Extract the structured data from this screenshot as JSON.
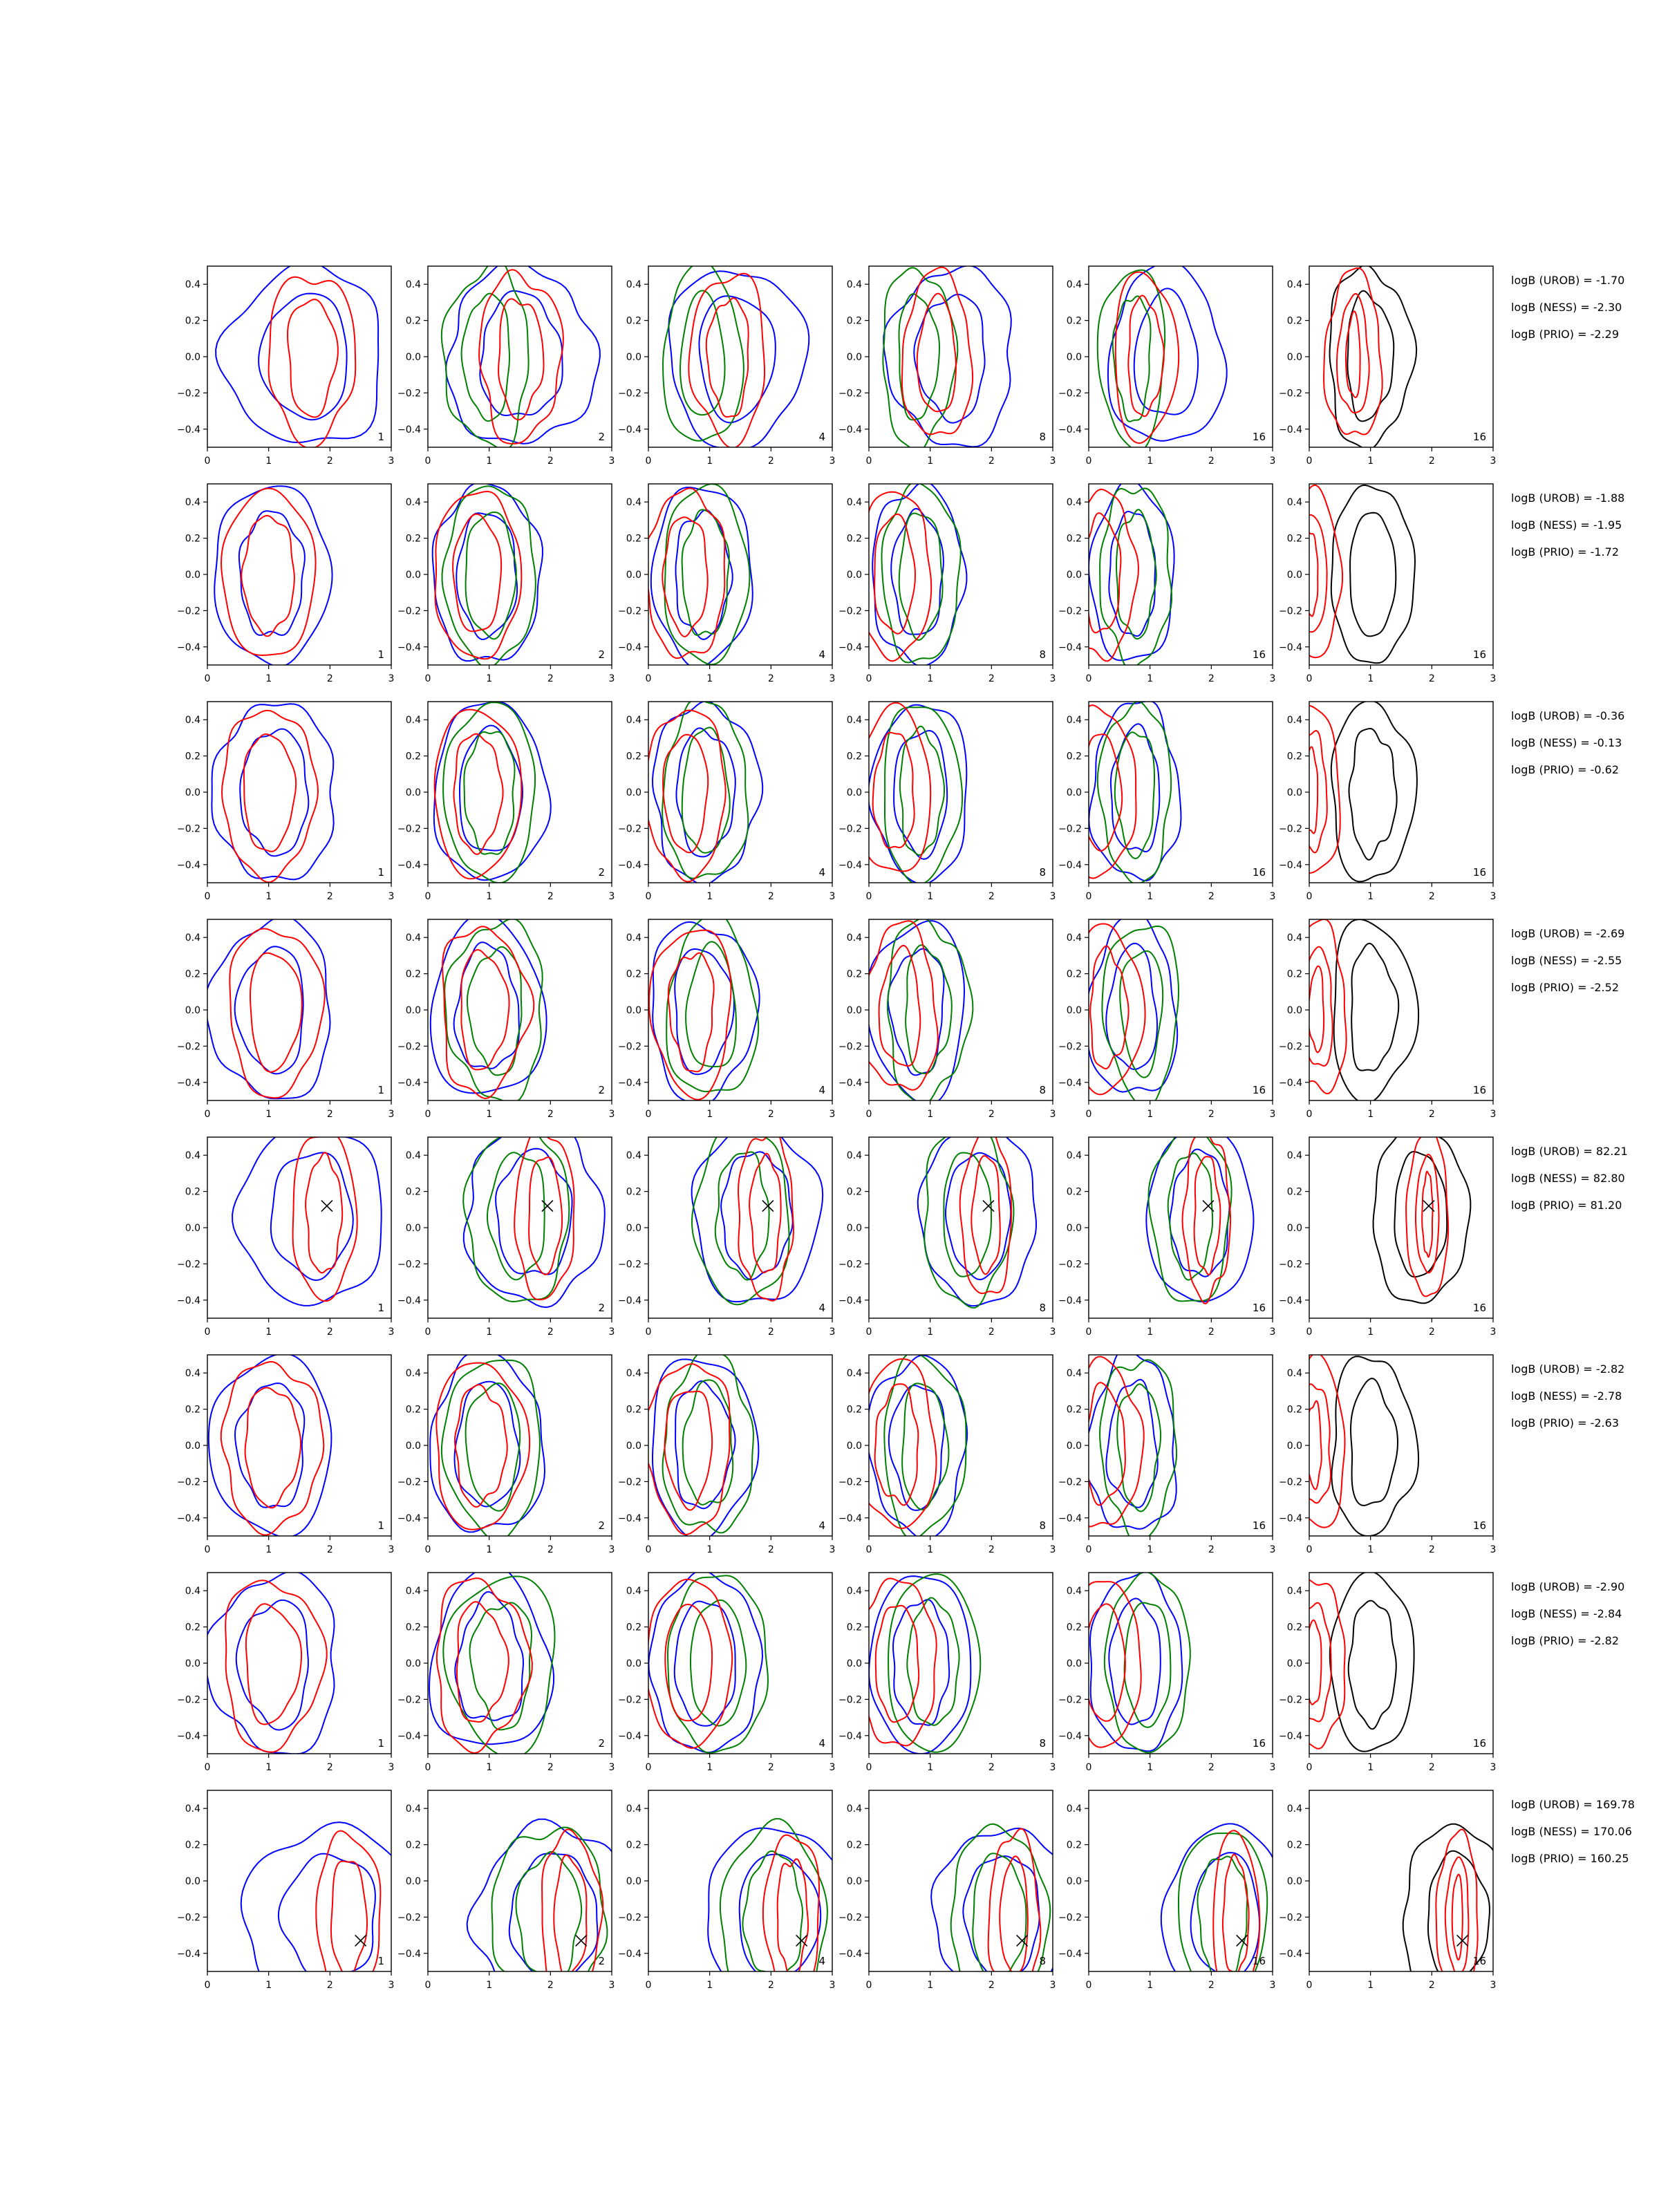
{
  "chart_data": {
    "type": "contour-grid",
    "title": "",
    "xlabel": "",
    "ylabel": "",
    "xlim": [
      0,
      3
    ],
    "ylim": [
      -0.5,
      0.5
    ],
    "xticks": [
      0,
      1,
      2,
      3
    ],
    "yticks": [
      0.4,
      0.2,
      0.0,
      -0.2,
      -0.4
    ],
    "xtick_labels": [
      "0",
      "1",
      "2",
      "3"
    ],
    "ytick_labels": [
      "0.4",
      "0.2",
      "0.0",
      "−0.2",
      "−0.4"
    ],
    "grid": false,
    "colors": {
      "blue": "#0000ff",
      "red": "#ff0000",
      "green": "#008000",
      "black": "#000000"
    },
    "column_labels": [
      "1",
      "2",
      "4",
      "8",
      "16",
      "16"
    ],
    "column_colors": [
      [
        "blue",
        "red"
      ],
      [
        "blue",
        "green",
        "red"
      ],
      [
        "blue",
        "green",
        "red"
      ],
      [
        "blue",
        "green",
        "red"
      ],
      [
        "blue",
        "green",
        "red"
      ],
      [
        "black",
        "red"
      ]
    ],
    "rows": [
      {
        "logB": [
          "logB (UROB) = -1.70",
          "logB (NESS) = -2.30",
          "logB (PRIO) = -2.29"
        ],
        "marker": null,
        "centers": {
          "blue": 1.6,
          "red": 1.7,
          "green": 1.05,
          "black": 1.4
        },
        "spread": {
          "blue": 1.3,
          "red": 0.75,
          "green": 0.75,
          "black": 1.05
        }
      },
      {
        "logB": [
          "logB (UROB) = -1.88",
          "logB (NESS) = -1.95",
          "logB (PRIO) = -1.72"
        ],
        "marker": null,
        "centers": {
          "blue": 1.05,
          "red": 1.0,
          "green": 1.1,
          "black": 1.45
        },
        "spread": {
          "blue": 0.95,
          "red": 0.8,
          "green": 0.8,
          "black": 1.05
        }
      },
      {
        "logB": [
          "logB (UROB) = -0.36",
          "logB (NESS) = -0.13",
          "logB (PRIO) = -0.62"
        ],
        "marker": null,
        "centers": {
          "blue": 1.1,
          "red": 1.0,
          "green": 1.1,
          "black": 1.45
        },
        "spread": {
          "blue": 1.0,
          "red": 0.8,
          "green": 0.8,
          "black": 1.05
        }
      },
      {
        "logB": [
          "logB (UROB) = -2.69",
          "logB (NESS) = -2.55",
          "logB (PRIO) = -2.52"
        ],
        "marker": null,
        "centers": {
          "blue": 1.05,
          "red": 1.1,
          "green": 1.2,
          "black": 1.45
        },
        "spread": {
          "blue": 1.0,
          "red": 0.8,
          "green": 0.85,
          "black": 1.05
        }
      },
      {
        "logB": [
          "logB (UROB) = 82.21",
          "logB (NESS) = 82.80",
          "logB (PRIO) = 81.20"
        ],
        "marker": [
          1.95,
          0.12
        ],
        "centers": {
          "blue": 1.7,
          "red": 1.9,
          "green": 1.4,
          "black": 1.6
        },
        "spread": {
          "blue": 1.2,
          "red": 0.55,
          "green": 0.9,
          "black": 1.2
        }
      },
      {
        "logB": [
          "logB (UROB) = -2.82",
          "logB (NESS) = -2.78",
          "logB (PRIO) = -2.63"
        ],
        "marker": null,
        "centers": {
          "blue": 1.05,
          "red": 1.05,
          "green": 1.15,
          "black": 1.45
        },
        "spread": {
          "blue": 1.0,
          "red": 0.85,
          "green": 0.85,
          "black": 1.05
        }
      },
      {
        "logB": [
          "logB (UROB) = -2.90",
          "logB (NESS) = -2.84",
          "logB (PRIO) = -2.82"
        ],
        "marker": null,
        "centers": {
          "blue": 1.1,
          "red": 1.05,
          "green": 1.3,
          "black": 1.45
        },
        "spread": {
          "blue": 1.05,
          "red": 0.85,
          "green": 0.95,
          "black": 1.05
        }
      },
      {
        "logB": [
          "logB (UROB) = 169.78",
          "logB (NESS) = 170.06",
          "logB (PRIO) = 160.25"
        ],
        "marker": [
          2.5,
          -0.33
        ],
        "centers": {
          "blue": 2.0,
          "red": 2.3,
          "green": 1.9,
          "black": 2.3
        },
        "spread": {
          "blue": 1.4,
          "red": 0.55,
          "green": 1.0,
          "black": 1.4
        }
      }
    ]
  }
}
